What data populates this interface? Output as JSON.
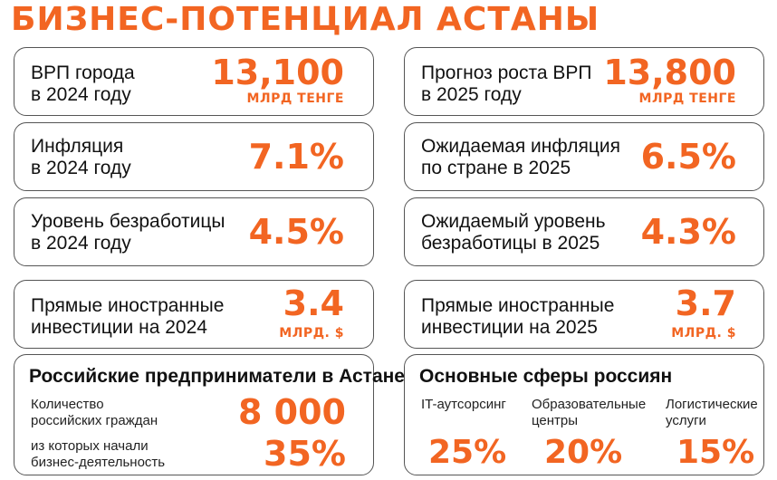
{
  "header": {
    "title": "БИЗНЕС-ПОТЕНЦИАЛ АСТАНЫ"
  },
  "left": {
    "gdp": {
      "label": "ВРП города\nв 2024 году",
      "value": "13,100",
      "unit": "МЛРД ТЕНГЕ"
    },
    "inflation": {
      "label": "Инфляция\nв 2024 году",
      "value": "7.1%"
    },
    "unemployment": {
      "label": "Уровень безработицы\nв 2024 году",
      "value": "4.5%"
    },
    "fdi": {
      "label": "Прямые иностранные\nинвестиции на 2024",
      "value": "3.4",
      "unit": "МЛРД. $"
    },
    "russians": {
      "title": "Российские предприниматели в Астане",
      "count_label": "Количество\nроссийских граждан",
      "count_value": "8 000",
      "business_label": "из которых начали\nбизнес-деятельность",
      "business_value": "35%"
    }
  },
  "right": {
    "gdp_forecast": {
      "label": "Прогноз роста ВРП\nв 2025 году",
      "value": "13,800",
      "unit": "МЛРД ТЕНГЕ"
    },
    "inflation": {
      "label": "Ожидаемая инфляция\nпо стране в 2025",
      "value": "6.5%"
    },
    "unemployment": {
      "label": "Ожидаемый уровень\nбезработицы в 2025",
      "value": "4.3%"
    },
    "fdi": {
      "label": "Прямые иностранные\nинвестиции на 2025",
      "value": "3.7",
      "unit": "МЛРД. $"
    },
    "spheres": {
      "title": "Основные сферы россиян",
      "items": [
        {
          "label": "IT-аутсорсинг",
          "value": "25%"
        },
        {
          "label": "Образовательные\nцентры",
          "value": "20%"
        },
        {
          "label": "Логистические\nуслуги",
          "value": "15%"
        }
      ]
    }
  },
  "colors": {
    "accent": "#f26522",
    "border": "#555555",
    "text": "#111111"
  }
}
